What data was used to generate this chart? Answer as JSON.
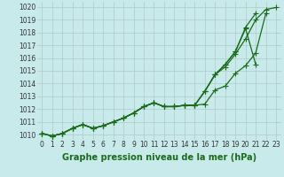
{
  "title": "Graphe pression niveau de la mer (hPa)",
  "bg_color": "#c8eaea",
  "line_color": "#1a6b1a",
  "grid_color": "#b0c8c8",
  "title_color": "#1a6b1a",
  "marker_style": "+",
  "marker_size": 4.0,
  "line_width": 0.9,
  "title_fontsize": 7.0,
  "tick_fontsize": 5.5,
  "ylim": [
    1009.6,
    1020.4
  ],
  "yticks": [
    1010,
    1011,
    1012,
    1013,
    1014,
    1015,
    1016,
    1017,
    1018,
    1019,
    1020
  ],
  "xticks": [
    0,
    1,
    2,
    3,
    4,
    5,
    6,
    7,
    8,
    9,
    10,
    11,
    12,
    13,
    14,
    15,
    16,
    17,
    18,
    19,
    20,
    21,
    22,
    23
  ],
  "lines": [
    {
      "x": [
        0,
        1,
        2,
        3,
        4,
        5,
        6,
        7,
        8,
        9,
        10,
        11,
        12,
        13,
        14,
        15,
        16,
        17,
        18,
        19,
        20,
        21,
        22,
        23
      ],
      "y": [
        1010.1,
        1009.9,
        1010.1,
        1010.5,
        1010.8,
        1010.5,
        1010.7,
        1011.0,
        1011.3,
        1011.7,
        1012.2,
        1012.5,
        1012.2,
        1012.2,
        1012.3,
        1012.3,
        1013.4,
        1014.7,
        1015.3,
        1016.3,
        1017.5,
        1019.0,
        1019.8,
        1019.95
      ]
    },
    {
      "x": [
        0,
        1,
        2,
        3,
        4,
        5,
        6,
        7,
        8,
        9,
        10,
        11,
        12,
        13,
        14,
        15,
        16,
        17,
        18,
        19,
        20,
        21
      ],
      "y": [
        1010.1,
        1009.9,
        1010.1,
        1010.5,
        1010.8,
        1010.5,
        1010.7,
        1011.0,
        1011.3,
        1011.7,
        1012.2,
        1012.5,
        1012.2,
        1012.2,
        1012.3,
        1012.3,
        1013.4,
        1014.7,
        1015.5,
        1016.5,
        1018.4,
        1019.5
      ]
    },
    {
      "x": [
        0,
        1,
        2,
        3,
        4,
        5,
        6,
        7,
        8,
        9,
        10,
        11,
        12,
        13,
        14,
        15,
        16,
        17,
        18,
        19,
        20,
        21
      ],
      "y": [
        1010.1,
        1009.9,
        1010.1,
        1010.5,
        1010.8,
        1010.5,
        1010.7,
        1011.0,
        1011.3,
        1011.7,
        1012.2,
        1012.5,
        1012.2,
        1012.2,
        1012.3,
        1012.3,
        1013.4,
        1014.7,
        1015.5,
        1016.5,
        1018.3,
        1015.5
      ]
    },
    {
      "x": [
        0,
        1,
        2,
        3,
        4,
        5,
        6,
        7,
        8,
        9,
        10,
        11,
        12,
        13,
        14,
        15,
        16,
        17,
        18,
        19,
        20,
        21,
        22,
        23
      ],
      "y": [
        1010.1,
        1009.9,
        1010.1,
        1010.5,
        1010.8,
        1010.5,
        1010.7,
        1011.0,
        1011.3,
        1011.7,
        1012.2,
        1012.5,
        1012.2,
        1012.2,
        1012.3,
        1012.3,
        1012.4,
        1013.5,
        1013.8,
        1014.8,
        1015.4,
        1016.4,
        1019.5,
        null
      ]
    }
  ]
}
